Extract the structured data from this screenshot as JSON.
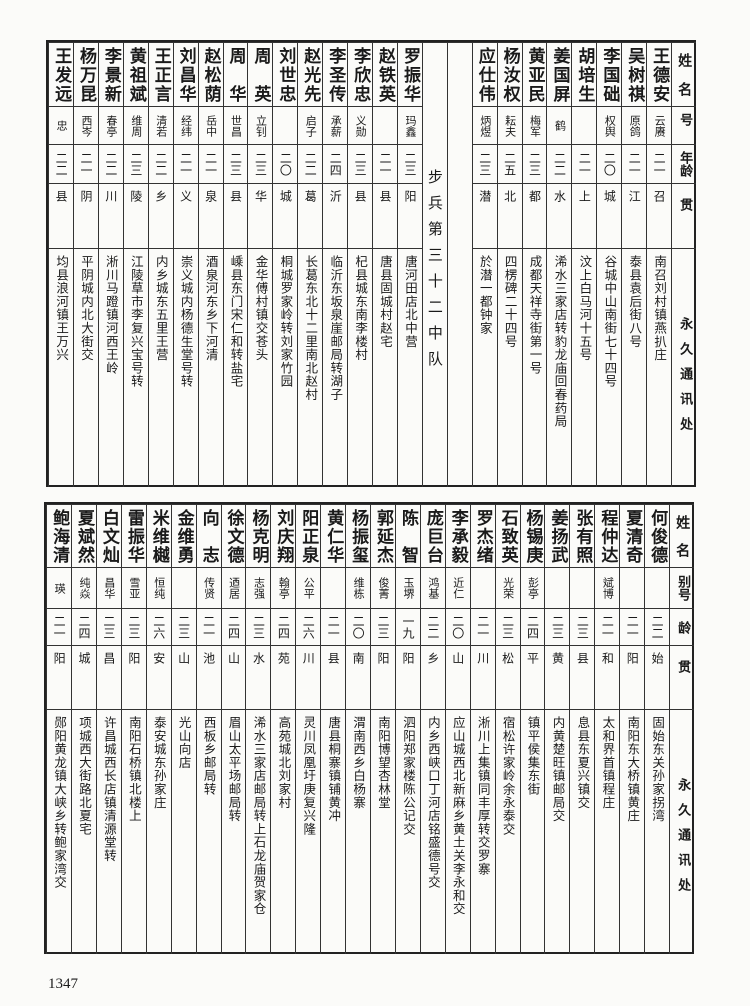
{
  "page_number": "1347",
  "headers": {
    "name": "姓名",
    "alias": "别号",
    "age": "年龄",
    "native": "籍贯",
    "address": "永久通讯处"
  },
  "section_title": "步兵第三十二中队",
  "top_table": {
    "group_a": [
      {
        "name": "王德安",
        "alias": "云赓",
        "age": "二一",
        "native": "河南南召",
        "address": "南召刘村镇燕扒庄"
      },
      {
        "name": "吴树祺",
        "alias": "原鸽",
        "age": "二一",
        "native": "江苏镇江",
        "address": "泰县袁后街八号"
      },
      {
        "name": "李国础",
        "alias": "权舆",
        "age": "二〇",
        "native": "湖北谷城",
        "address": "谷城中山南街七十四号"
      },
      {
        "name": "胡培生",
        "alias": "",
        "age": "二一",
        "native": "山东汶上",
        "address": "汶上白马河十五号"
      },
      {
        "name": "姜国屏",
        "alias": "鹤",
        "age": "二二",
        "native": "湖北浠水",
        "address": "浠水三家店转豹龙庙回春药局"
      },
      {
        "name": "黄亚民",
        "alias": "梅军",
        "age": "二三",
        "native": "四川成都",
        "address": "成都天祥寺街第一号"
      },
      {
        "name": "杨汝权",
        "alias": "耘夫",
        "age": "二五",
        "native": "四川江北",
        "address": "四楞碑二十四号"
      },
      {
        "name": "应仕伟",
        "alias": "炳煜",
        "age": "二三",
        "native": "浙江於潜",
        "address": "於潜一都钟家"
      }
    ],
    "group_b": [
      {
        "name": "罗振华",
        "alias": "玛鑫",
        "age": "二三",
        "native": "河南南阳",
        "address": "唐河田店北中营"
      },
      {
        "name": "赵铁英",
        "alias": "",
        "age": "二一",
        "native": "河北唐县",
        "address": "唐县固城村赵宅"
      },
      {
        "name": "李欣忠",
        "alias": "义勋",
        "age": "二三",
        "native": "河南杞县",
        "address": "杞县城东南李楼村"
      },
      {
        "name": "李圣传",
        "alias": "承薪",
        "age": "二四",
        "native": "山东临沂",
        "address": "临沂东坂泉崖邮局转湖子"
      },
      {
        "name": "赵光先",
        "alias": "启子",
        "age": "二二",
        "native": "河南长葛",
        "address": "长葛东北十二里南北赵村"
      },
      {
        "name": "刘世忠",
        "alias": "",
        "age": "二〇",
        "native": "安徽桐城",
        "address": "桐城罗家岭转刘家竹园"
      },
      {
        "name": "周　英",
        "alias": "立钊",
        "age": "二三",
        "native": "浙江金华",
        "address": "金华傅村镇交苍头"
      },
      {
        "name": "周　华",
        "alias": "世昌",
        "age": "二三",
        "native": "浙江嵊县",
        "address": "嵊县东门宋仁和转盐宅"
      },
      {
        "name": "赵松荫",
        "alias": "岳中",
        "age": "二一",
        "native": "甘肃酒泉",
        "address": "酒泉河东乡下河清"
      },
      {
        "name": "刘昌华",
        "alias": "经纬",
        "age": "二一",
        "native": "江西崇义",
        "address": "崇义城内杨德生堂号转"
      },
      {
        "name": "王正言",
        "alias": "清若",
        "age": "二二",
        "native": "河南内乡",
        "address": "内乡城东五里王营"
      },
      {
        "name": "黄祖斌",
        "alias": "维周",
        "age": "二三",
        "native": "湖北江陵",
        "address": "江陵草市李复兴宝号转"
      },
      {
        "name": "李景新",
        "alias": "春亭",
        "age": "二二",
        "native": "河南淅川",
        "address": "淅川马蹬镇河西王岭"
      },
      {
        "name": "杨万昆",
        "alias": "西岑",
        "age": "二一",
        "native": "山东平阴",
        "address": "平阴城内北大街交"
      },
      {
        "name": "王发远",
        "alias": "忠",
        "age": "二二",
        "native": "湖北均县",
        "address": "均县浪河镇王万兴"
      }
    ]
  },
  "bottom_table": {
    "rows": [
      {
        "name": "何俊德",
        "alias": "",
        "age": "二二",
        "native": "河南固始",
        "address": "固始东关孙家拐湾"
      },
      {
        "name": "夏清奇",
        "alias": "",
        "age": "二一",
        "native": "河南南阳",
        "address": "南阳东大桥镇黄庄"
      },
      {
        "name": "程仲达",
        "alias": "斌博",
        "age": "二一",
        "native": "安徽太和",
        "address": "太和界首镇程庄"
      },
      {
        "name": "张有照",
        "alias": "",
        "age": "二三",
        "native": "河南息县",
        "address": "息县东夏兴镇交"
      },
      {
        "name": "姜扬武",
        "alias": "",
        "age": "二三",
        "native": "河南内黄",
        "address": "内黄楚旺镇邮局交"
      },
      {
        "name": "杨锡庚",
        "alias": "彭亭",
        "age": "二四",
        "native": "河南镇平",
        "address": "镇平侯集东街"
      },
      {
        "name": "石致英",
        "alias": "光荣",
        "age": "二三",
        "native": "安徽宿松",
        "address": "宿松许家岭余永泰交"
      },
      {
        "name": "罗杰绪",
        "alias": "",
        "age": "二一",
        "native": "河南淅川",
        "address": "淅川上集镇同丰厚转交罗寨"
      },
      {
        "name": "李承毅",
        "alias": "近仁",
        "age": "二〇",
        "native": "湖北应山",
        "address": "应山城西北新麻乡黄土关李永和交"
      },
      {
        "name": "庞巨台",
        "alias": "鸿基",
        "age": "二二",
        "native": "河南内乡",
        "address": "内乡西峡口丁河店铭盛德号交"
      },
      {
        "name": "陈　智",
        "alias": "玉堺",
        "age": "一九",
        "native": "江苏泗阳",
        "address": "泗阳郑家楼陈公记交"
      },
      {
        "name": "郭延杰",
        "alias": "俊菁",
        "age": "二三",
        "native": "河南南阳",
        "address": "南阳博望杏林堂"
      },
      {
        "name": "杨振玺",
        "alias": "维栋",
        "age": "二〇",
        "native": "陕西渭南",
        "address": "渭南西乡白杨寨"
      },
      {
        "name": "黄仁华",
        "alias": "",
        "age": "二一",
        "native": "河南唐县",
        "address": "唐县桐寨镇铺黄冲"
      },
      {
        "name": "阳正泉",
        "alias": "公平",
        "age": "二六",
        "native": "广西灵川",
        "address": "灵川凤凰圩庚复兴隆"
      },
      {
        "name": "刘庆翔",
        "alias": "翰亭",
        "age": "二四",
        "native": "山东高苑",
        "address": "高苑城北刘家村"
      },
      {
        "name": "杨克明",
        "alias": "志强",
        "age": "二三",
        "native": "湖北浠水",
        "address": "浠水三家店邮局转上石龙庙贺家仓"
      },
      {
        "name": "徐文德",
        "alias": "迺居",
        "age": "二四",
        "native": "四川眉山",
        "address": "眉山太平场邮局转"
      },
      {
        "name": "向　志",
        "alias": "传贤",
        "age": "二一",
        "native": "四川岳池",
        "address": "西板乡邮局转"
      },
      {
        "name": "金维勇",
        "alias": "",
        "age": "二三",
        "native": "河南光山",
        "address": "光山向店"
      },
      {
        "name": "米维樾",
        "alias": "恒纯",
        "age": "二六",
        "native": "山东泰安",
        "address": "泰安城东孙家庄"
      },
      {
        "name": "雷振华",
        "alias": "雪亚",
        "age": "二三",
        "native": "河南南阳",
        "address": "南阳石桥镇北楼上"
      },
      {
        "name": "白文灿",
        "alias": "昌华",
        "age": "二三",
        "native": "河南许昌",
        "address": "许昌城西长店镇清源堂转"
      },
      {
        "name": "夏斌然",
        "alias": "纯焱",
        "age": "二四",
        "native": "河南项城",
        "address": "项城西大街路北夏宅"
      },
      {
        "name": "鲍海清",
        "alias": "瑛",
        "age": "二一",
        "native": "湖北郧阳",
        "address": "郧阳黄龙镇大峡乡转鲍家湾交"
      }
    ]
  }
}
